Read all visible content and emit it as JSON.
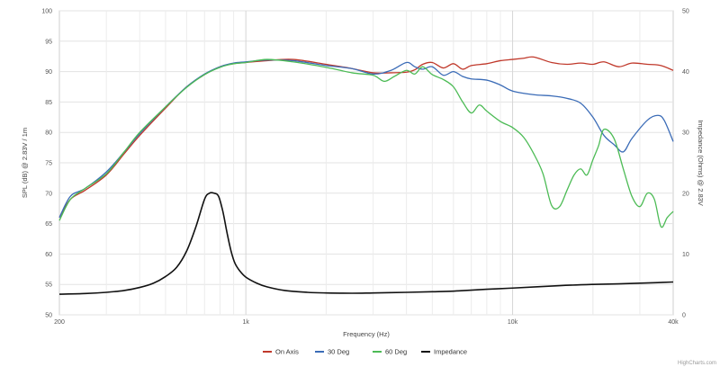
{
  "chart_data": {
    "type": "line",
    "xlabel": "Frequency (Hz)",
    "ylabel": "SPL (dB) @ 2.83V / 1m",
    "y2label": "Impedance (Ohms) @ 2.83V",
    "x_scale": "log",
    "xlim": [
      200,
      40000
    ],
    "ylim": [
      50,
      100
    ],
    "y2lim": [
      0,
      50
    ],
    "grid": true,
    "legend_position": "bottom",
    "x_ticks": [
      {
        "value": 200,
        "label": "200"
      },
      {
        "value": 1000,
        "label": "1k"
      },
      {
        "value": 10000,
        "label": "10k"
      },
      {
        "value": 40000,
        "label": "40k"
      }
    ],
    "y_ticks": [
      {
        "value": 100,
        "label": "100"
      },
      {
        "value": 95,
        "label": "95"
      },
      {
        "value": 90,
        "label": "90"
      },
      {
        "value": 85,
        "label": "85"
      },
      {
        "value": 80,
        "label": "80"
      },
      {
        "value": 75,
        "label": "75"
      },
      {
        "value": 70,
        "label": "70"
      },
      {
        "value": 65,
        "label": "65"
      },
      {
        "value": 60,
        "label": "60"
      },
      {
        "value": 55,
        "label": "55"
      },
      {
        "value": 50,
        "label": "50"
      }
    ],
    "y2_ticks": [
      {
        "value": 50,
        "label": "50"
      },
      {
        "value": 40,
        "label": "40"
      },
      {
        "value": 30,
        "label": "30"
      },
      {
        "value": 20,
        "label": "20"
      },
      {
        "value": 10,
        "label": "10"
      },
      {
        "value": 0,
        "label": "0"
      }
    ],
    "series": [
      {
        "name": "On Axis",
        "color": "#c0392b",
        "axis": "left",
        "x": [
          200,
          220,
          250,
          300,
          350,
          400,
          500,
          600,
          700,
          800,
          900,
          1000,
          1200,
          1500,
          2000,
          2500,
          3000,
          3500,
          4000,
          4300,
          4600,
          5000,
          5500,
          6000,
          6500,
          7000,
          8000,
          9000,
          10000,
          11000,
          12000,
          14000,
          16000,
          18000,
          20000,
          22000,
          25000,
          28000,
          32000,
          36000,
          40000
        ],
        "values": [
          66,
          69,
          70.5,
          73,
          76.5,
          79.5,
          84,
          87.5,
          89.5,
          90.8,
          91.3,
          91.5,
          91.8,
          92,
          91.2,
          90.5,
          89.8,
          89.8,
          89.9,
          90.3,
          91.2,
          91.5,
          90.6,
          91.3,
          90.4,
          91,
          91.3,
          91.8,
          92,
          92.2,
          92.4,
          91.5,
          91.2,
          91.4,
          91.2,
          91.6,
          90.8,
          91.4,
          91.2,
          91,
          90.2
        ]
      },
      {
        "name": "30 Deg",
        "color": "#3b6cb7",
        "axis": "left",
        "x": [
          200,
          220,
          250,
          300,
          350,
          400,
          500,
          600,
          700,
          800,
          900,
          1000,
          1200,
          1500,
          2000,
          2500,
          3000,
          3500,
          4000,
          4300,
          4600,
          5000,
          5500,
          6000,
          6500,
          7000,
          8000,
          9000,
          10000,
          12000,
          14000,
          16000,
          18000,
          20000,
          22000,
          24000,
          26000,
          28000,
          32000,
          35000,
          37000,
          40000
        ],
        "values": [
          66,
          69.5,
          70.8,
          73.5,
          76.8,
          79.8,
          84.2,
          87.5,
          89.6,
          90.8,
          91.4,
          91.6,
          91.9,
          91.8,
          91,
          90.5,
          89.6,
          90.2,
          91.5,
          90.8,
          90.4,
          90.8,
          89.4,
          90,
          89.2,
          88.8,
          88.6,
          87.8,
          86.8,
          86.2,
          86,
          85.6,
          84.8,
          82.5,
          79.5,
          78,
          76.8,
          79,
          82,
          82.8,
          82,
          78.5
        ]
      },
      {
        "name": "60 Deg",
        "color": "#4cbb55",
        "axis": "left",
        "x": [
          200,
          220,
          250,
          300,
          350,
          400,
          500,
          600,
          700,
          800,
          900,
          1000,
          1200,
          1500,
          2000,
          2500,
          3000,
          3300,
          3600,
          4000,
          4300,
          4600,
          5000,
          5500,
          6000,
          6500,
          7000,
          7500,
          8000,
          9000,
          10000,
          11000,
          12000,
          13000,
          14000,
          15000,
          16000,
          17000,
          18000,
          19000,
          20000,
          21000,
          22000,
          24000,
          26000,
          28000,
          30000,
          32000,
          34000,
          36000,
          38000,
          40000
        ],
        "values": [
          65.5,
          69,
          70.8,
          73.2,
          76.8,
          80,
          84.2,
          87.4,
          89.5,
          90.7,
          91.3,
          91.5,
          92,
          91.6,
          90.7,
          89.8,
          89.4,
          88.4,
          89.2,
          90.2,
          89.6,
          90.8,
          89.5,
          88.7,
          87.5,
          85,
          83.2,
          84.5,
          83.5,
          81.8,
          80.8,
          79.2,
          76.5,
          73.2,
          68,
          67.8,
          70.5,
          73,
          74,
          73,
          75.5,
          77.8,
          80.5,
          79,
          74,
          69.5,
          67.8,
          70,
          69,
          64.5,
          66,
          67
        ]
      },
      {
        "name": "Impedance",
        "color": "#111111",
        "axis": "right",
        "x": [
          200,
          250,
          300,
          350,
          400,
          450,
          500,
          550,
          600,
          650,
          700,
          730,
          760,
          790,
          820,
          850,
          880,
          910,
          950,
          1000,
          1100,
          1200,
          1400,
          1700,
          2000,
          2500,
          3000,
          4000,
          5000,
          6000,
          8000,
          10000,
          15000,
          20000,
          25000,
          30000,
          35000,
          40000
        ],
        "values": [
          3.4,
          3.5,
          3.7,
          4,
          4.5,
          5.2,
          6.3,
          7.8,
          10.5,
          14.5,
          19,
          20,
          20,
          19.5,
          17,
          13.5,
          10.5,
          8.5,
          7.2,
          6.2,
          5.2,
          4.6,
          4,
          3.7,
          3.6,
          3.55,
          3.6,
          3.7,
          3.8,
          3.9,
          4.2,
          4.4,
          4.8,
          5,
          5.1,
          5.2,
          5.3,
          5.4
        ]
      }
    ]
  },
  "footer": {
    "credit": "HighCharts.com"
  }
}
